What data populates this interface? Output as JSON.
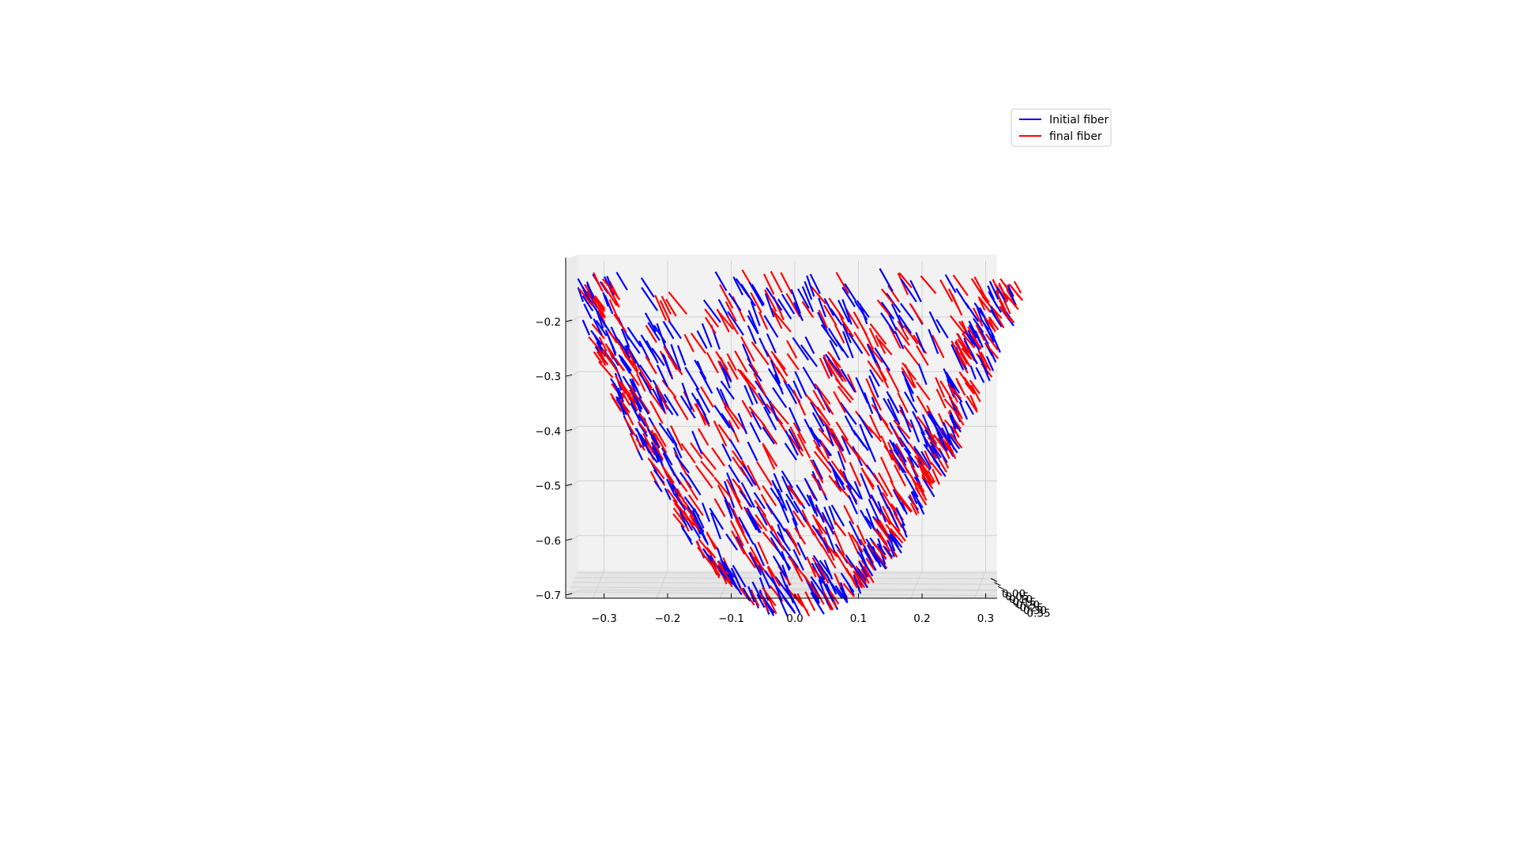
{
  "chart_data": {
    "type": "3d-line-segments",
    "title": "",
    "xlabel": "",
    "ylabel": "",
    "zlabel": "",
    "xlim": [
      -0.35,
      0.32
    ],
    "zlim": [
      -0.72,
      -0.1
    ],
    "x_ticks": [
      "−0.3",
      "−0.2",
      "−0.1",
      "0.0",
      "0.1",
      "0.2",
      "0.3"
    ],
    "z_ticks": [
      "−0.2",
      "−0.3",
      "−0.4",
      "−0.5",
      "−0.6",
      "−0.7"
    ],
    "y_ticks_overlapping": [
      "0.00",
      "0.05",
      "0.10",
      "0.15",
      "0.20",
      "0.25",
      "0.30",
      "0.35"
    ],
    "surface": "paraboloid bowl, z ≈ −0.72 + 4.8·x², rim near z ≈ −0.12",
    "grid": true,
    "legend_position": "upper right",
    "series": [
      {
        "name": "Initial fiber",
        "color": "#0000ff",
        "tilt_deg": 62
      },
      {
        "name": "final fiber",
        "color": "#ff0000",
        "tilt_deg": 58
      }
    ]
  },
  "legend": {
    "items": [
      {
        "label": "Initial fiber",
        "color": "#0000ff"
      },
      {
        "label": "final fiber",
        "color": "#ff0000"
      }
    ]
  }
}
